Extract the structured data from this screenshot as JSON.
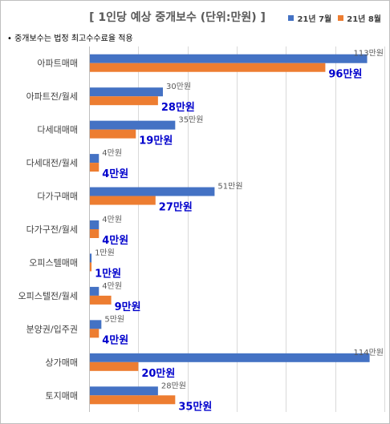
{
  "chart_data": {
    "type": "bar",
    "orientation": "horizontal",
    "title": "[ 1인당 예상 중개보수 (단위:만원) ]",
    "note": "• 중개보수는 법정 최고수수료율 적용",
    "legend_position": "top-right",
    "grid": true,
    "xlim": [
      0,
      120
    ],
    "categories": [
      "아파트매매",
      "아파트전/월세",
      "다세대매매",
      "다세대전/월세",
      "다가구매매",
      "다가구전/월세",
      "오피스텔매매",
      "오피스텔전/월세",
      "분양권/입주권",
      "상가매매",
      "토지매매"
    ],
    "series": [
      {
        "name": "21년 7월",
        "color": "#4472c4",
        "values": [
          113,
          30,
          35,
          4,
          51,
          4,
          1,
          4,
          5,
          114,
          28
        ],
        "labels": [
          "113만원",
          "30만원",
          "35만원",
          "4만원",
          "51만원",
          "4만원",
          "1만원",
          "4만원",
          "5만원",
          "114만원",
          "28만원"
        ]
      },
      {
        "name": "21년 8월",
        "color": "#ed7d31",
        "values": [
          96,
          28,
          19,
          4,
          27,
          4,
          1,
          9,
          4,
          20,
          35
        ],
        "labels": [
          "96만원",
          "28만원",
          "19만원",
          "4만원",
          "27만원",
          "4만원",
          "1만원",
          "9만원",
          "4만원",
          "20만원",
          "35만원"
        ]
      }
    ]
  }
}
